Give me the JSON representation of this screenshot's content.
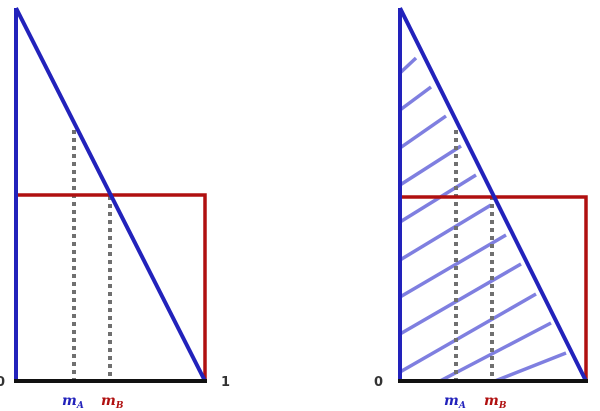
{
  "colors": {
    "blue": "#2222bb",
    "red": "#b01010",
    "dotted": "#707070",
    "hatch": "#7f7fe0",
    "base": "#111111"
  },
  "left_panel": {
    "origin_label": "0",
    "end_label": "1",
    "marker_a": {
      "letter": "m",
      "sub": "A"
    },
    "marker_b": {
      "letter": "m",
      "sub": "B"
    }
  },
  "right_panel": {
    "origin_label": "0",
    "marker_a": {
      "letter": "m",
      "sub": "A"
    },
    "marker_b": {
      "letter": "m",
      "sub": "B"
    }
  }
}
